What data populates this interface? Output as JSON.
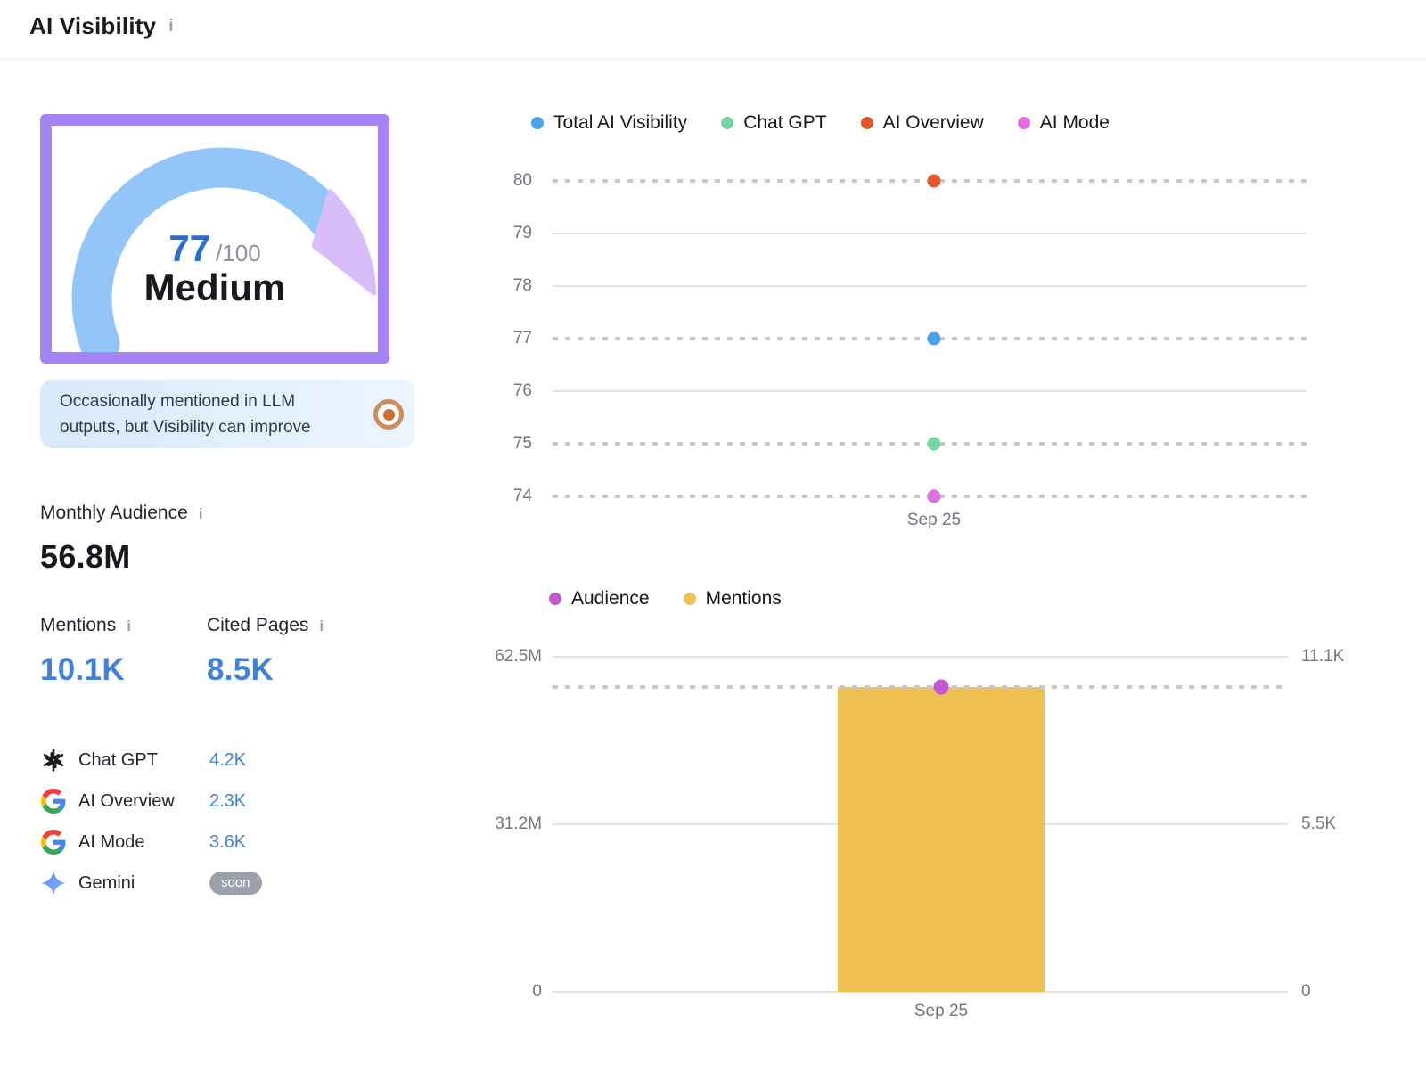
{
  "header": {
    "title": "AI Visibility"
  },
  "icons": {
    "info": "i"
  },
  "gauge": {
    "score": "77",
    "max": "/100",
    "label": "Medium"
  },
  "callout": {
    "text": "Occasionally mentioned in LLM outputs, but Visibility can improve"
  },
  "monthly_audience": {
    "label": "Monthly Audience",
    "value": "56.8M"
  },
  "mentions": {
    "label": "Mentions",
    "value": "10.1K"
  },
  "cited_pages": {
    "label": "Cited Pages",
    "value": "8.5K"
  },
  "platforms": [
    {
      "name": "Chat GPT",
      "icon": "openai",
      "value": "4.2K"
    },
    {
      "name": "AI Overview",
      "icon": "google",
      "value": "2.3K"
    },
    {
      "name": "AI Mode",
      "icon": "google",
      "value": "3.6K"
    },
    {
      "name": "Gemini",
      "icon": "gemini",
      "badge": "soon"
    }
  ],
  "colors": {
    "accent_blue": "#3f82d8",
    "gauge_border": "#a583f2",
    "gauge_arc": "#92c6f8",
    "gauge_arc_rest": "#d8bdf9",
    "score_blue": "#2d6bcb",
    "badge_gray": "#9ba1ab"
  },
  "chart_data": [
    {
      "type": "scatter",
      "title": "AI Visibility score by platform",
      "x_categories": [
        "Sep 25"
      ],
      "ylim": [
        74,
        80
      ],
      "y_ticks": [
        80,
        79,
        78,
        77,
        76,
        75,
        74
      ],
      "grid": "dashed line on rows with a data point, solid otherwise",
      "legend_position": "top",
      "series": [
        {
          "name": "Total AI Visibility",
          "color": "#4aa3ed",
          "values": [
            77
          ]
        },
        {
          "name": "Chat GPT",
          "color": "#77d3a2",
          "values": [
            75
          ]
        },
        {
          "name": "AI Overview",
          "color": "#e2572f",
          "values": [
            80
          ]
        },
        {
          "name": "AI Mode",
          "color": "#dc70e2",
          "values": [
            74
          ]
        }
      ]
    },
    {
      "type": "bar+scatter",
      "title": "Audience and Mentions",
      "x_categories": [
        "Sep 25"
      ],
      "legend_position": "top",
      "left_axis": {
        "ticks": [
          "62.5M",
          "31.2M",
          "0"
        ],
        "max": 62500000
      },
      "right_axis": {
        "ticks": [
          "11.1K",
          "5.5K",
          "0"
        ],
        "max": 11100
      },
      "series": [
        {
          "name": "Audience",
          "mark": "point",
          "axis": "left",
          "color": "#c259ce",
          "values": [
            56800000
          ],
          "display": [
            "56.8M"
          ]
        },
        {
          "name": "Mentions",
          "mark": "bar",
          "axis": "right",
          "color": "#efc155",
          "values": [
            10100
          ],
          "display": [
            "10.1K"
          ]
        }
      ]
    }
  ]
}
